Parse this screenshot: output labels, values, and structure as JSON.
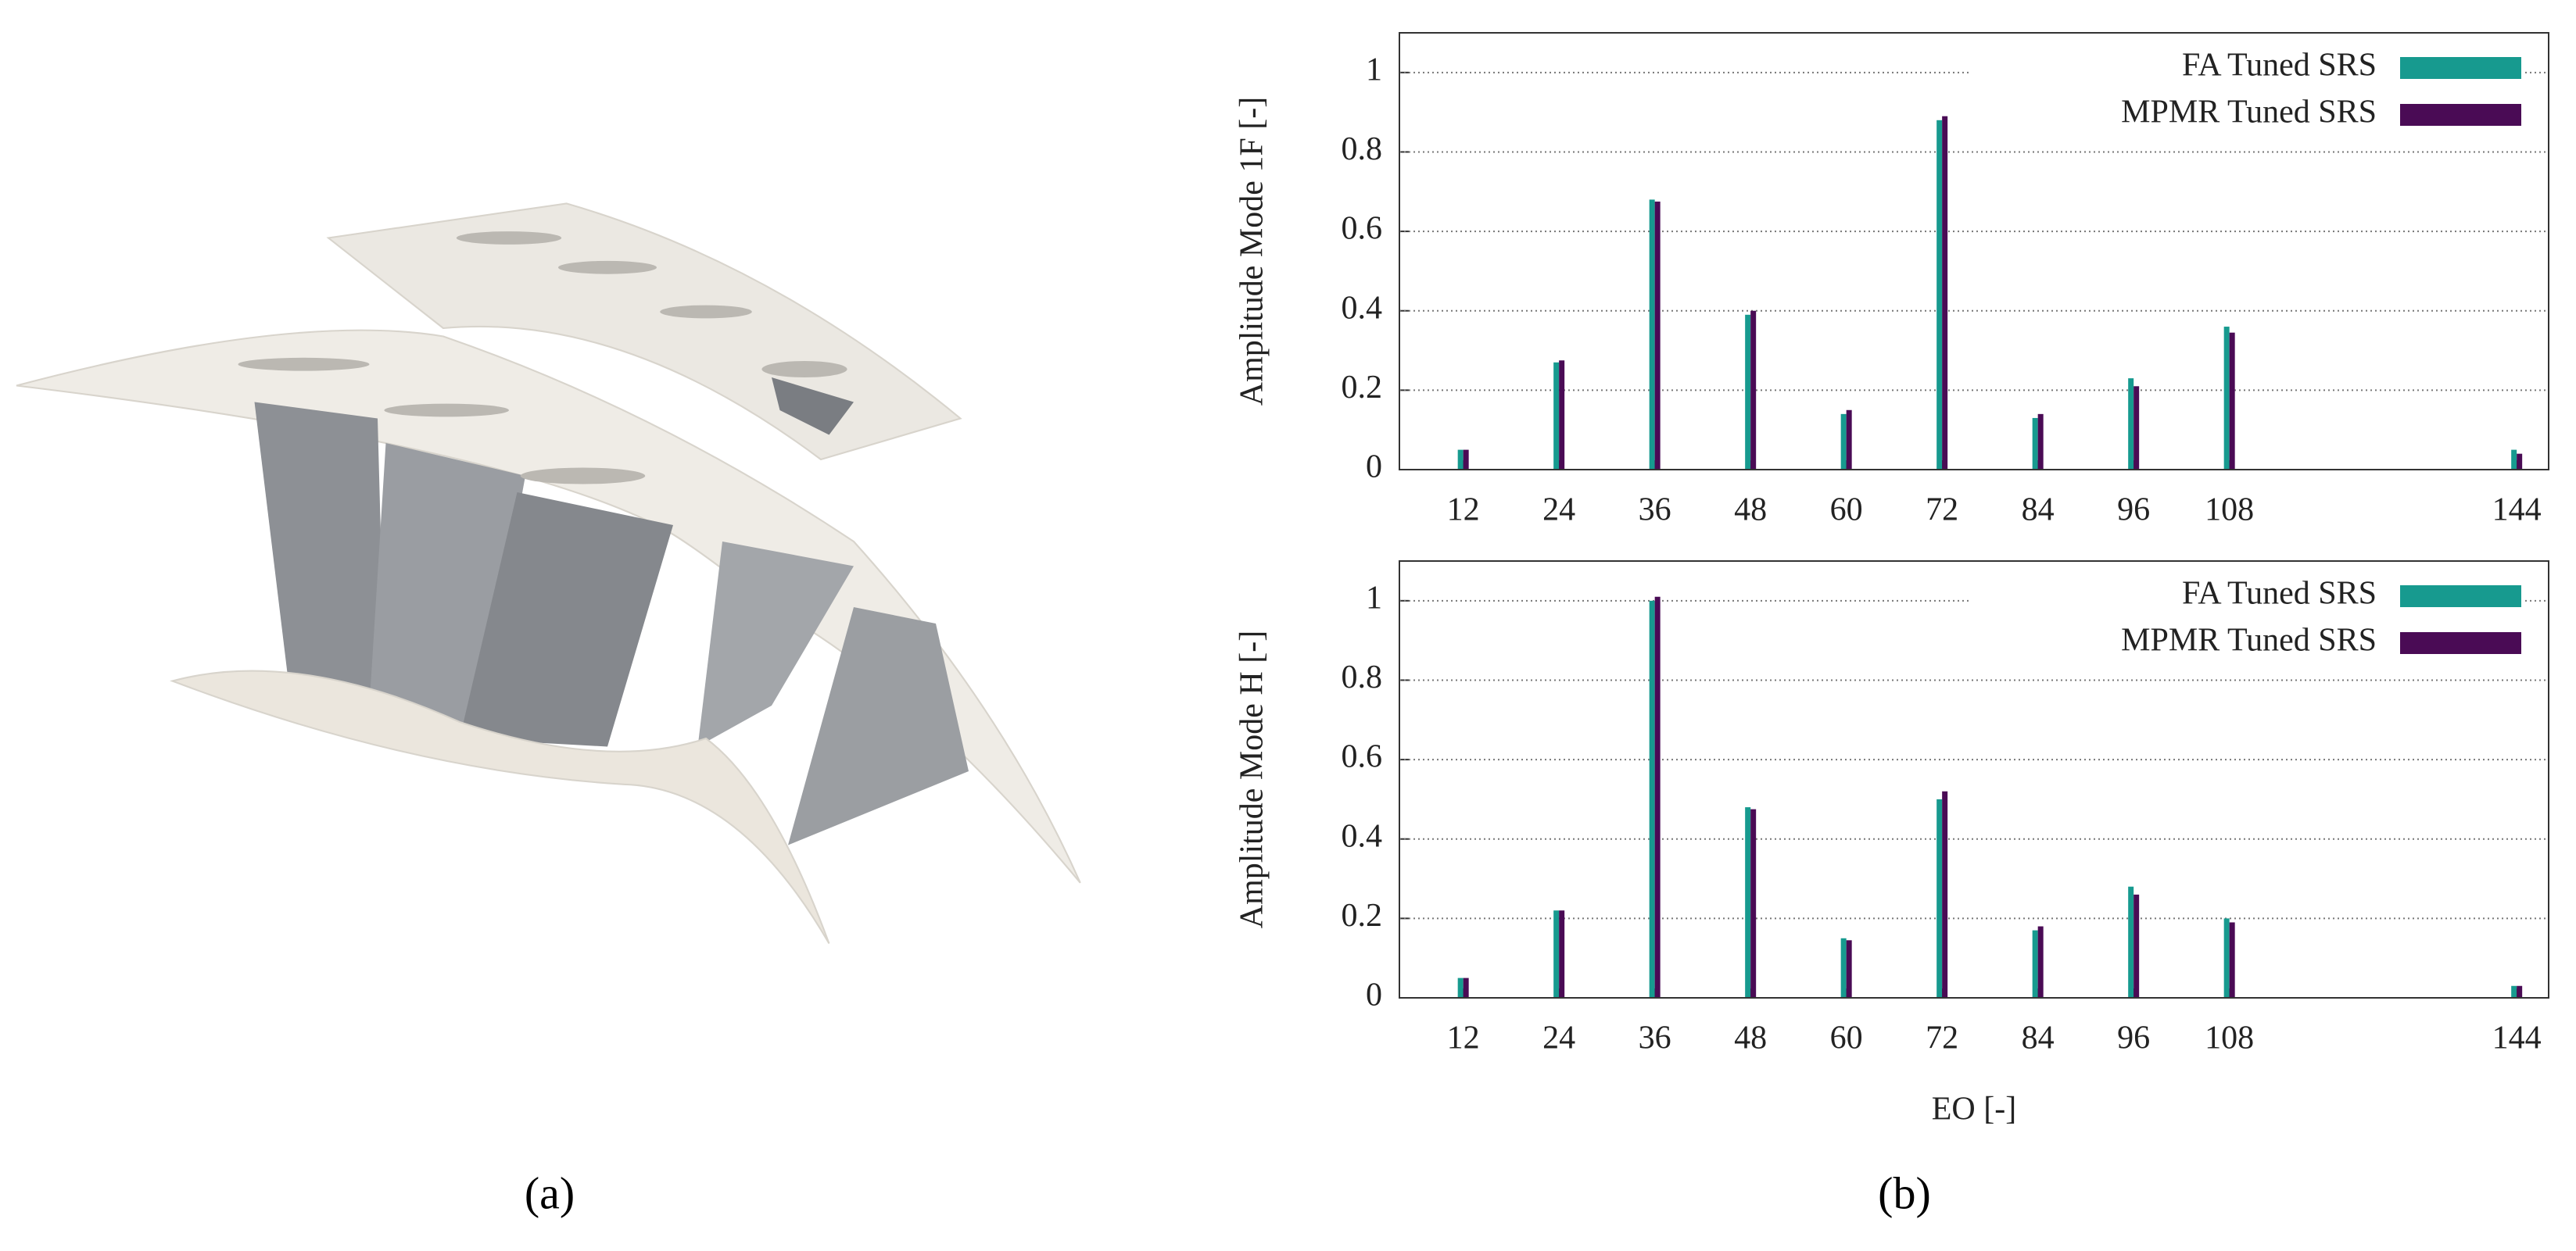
{
  "chart_data": [
    {
      "type": "bar",
      "ylabel": "Amplitude Mode 1F [-]",
      "x": [
        12,
        24,
        36,
        48,
        60,
        72,
        84,
        96,
        108,
        144
      ],
      "series": [
        {
          "name": "FA Tuned SRS",
          "color": "#179a8f",
          "values": [
            0.05,
            0.27,
            0.68,
            0.39,
            0.14,
            0.88,
            0.13,
            0.23,
            0.36,
            0.05
          ]
        },
        {
          "name": "MPMR Tuned SRS",
          "color": "#4a0b55",
          "values": [
            0.05,
            0.275,
            0.675,
            0.4,
            0.15,
            0.89,
            0.14,
            0.21,
            0.345,
            0.04
          ]
        }
      ],
      "xlim": [
        4,
        148
      ],
      "xticks": [
        12,
        24,
        36,
        48,
        60,
        72,
        84,
        96,
        108,
        144
      ],
      "ylim": [
        0,
        1.1
      ],
      "yticks": [
        0,
        0.2,
        0.4,
        0.6,
        0.8,
        1
      ],
      "grid": true,
      "legend": "upper right"
    },
    {
      "type": "bar",
      "ylabel": "Amplitude Mode H [-]",
      "xlabel": "EO [-]",
      "x": [
        12,
        24,
        36,
        48,
        60,
        72,
        84,
        96,
        108,
        144
      ],
      "series": [
        {
          "name": "FA Tuned SRS",
          "color": "#179a8f",
          "values": [
            0.05,
            0.22,
            1.0,
            0.48,
            0.15,
            0.5,
            0.17,
            0.28,
            0.2,
            0.03
          ]
        },
        {
          "name": "MPMR Tuned SRS",
          "color": "#4a0b55",
          "values": [
            0.05,
            0.22,
            1.01,
            0.475,
            0.145,
            0.52,
            0.18,
            0.26,
            0.19,
            0.03
          ]
        }
      ],
      "xlim": [
        4,
        148
      ],
      "xticks": [
        12,
        24,
        36,
        48,
        60,
        72,
        84,
        96,
        108,
        144
      ],
      "ylim": [
        0,
        1.1
      ],
      "yticks": [
        0,
        0.2,
        0.4,
        0.6,
        0.8,
        1
      ],
      "grid": true,
      "legend": "upper right"
    }
  ],
  "panel_labels": [
    "(a)",
    "(b)"
  ]
}
